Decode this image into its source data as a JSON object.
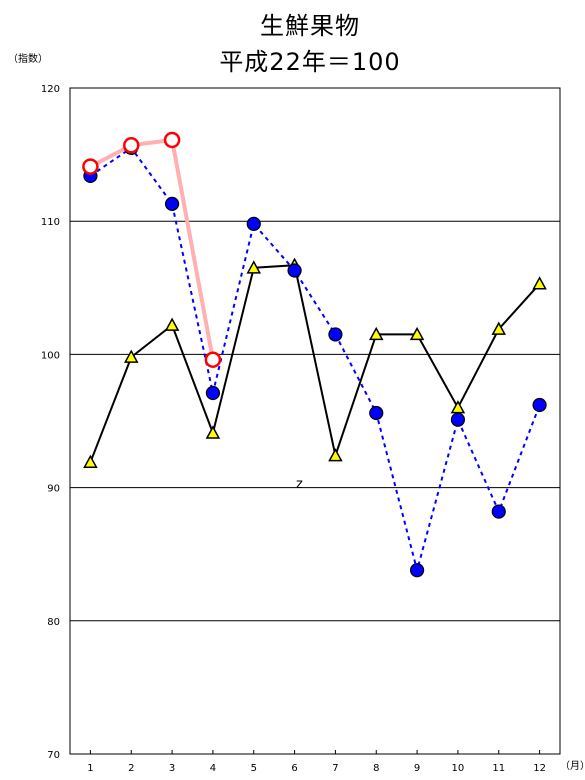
{
  "chart_data": {
    "type": "line",
    "title": [
      "生鮮果物",
      "平成22年＝100"
    ],
    "ylabel": "（指数）",
    "xlabel": "（月）",
    "categories": [
      "1",
      "2",
      "3",
      "4",
      "5",
      "6",
      "7",
      "8",
      "9",
      "10",
      "11",
      "12"
    ],
    "ylim": [
      70,
      120
    ],
    "yticks": [
      70,
      80,
      90,
      100,
      110,
      120
    ],
    "grid": true,
    "annotation": "z",
    "series": [
      {
        "style": "solid-black-triangle",
        "color": "#000000",
        "marker_color": "#ffff00",
        "values": [
          91.9,
          99.8,
          102.2,
          94.1,
          106.5,
          106.7,
          92.4,
          101.5,
          101.5,
          96.0,
          101.9,
          105.3
        ]
      },
      {
        "style": "dotted-blue-circle",
        "color": "#0000ff",
        "marker_color": "#0000ff",
        "values": [
          113.4,
          115.5,
          111.3,
          97.1,
          109.8,
          106.3,
          101.5,
          95.6,
          83.8,
          95.1,
          88.2,
          96.2
        ]
      },
      {
        "style": "thick-pink-open-circle",
        "color": "#ffb0b0",
        "marker_color": "#ff0000",
        "values": [
          114.1,
          115.7,
          116.1,
          99.6,
          null,
          null,
          null,
          null,
          null,
          null,
          null,
          null
        ]
      }
    ]
  }
}
